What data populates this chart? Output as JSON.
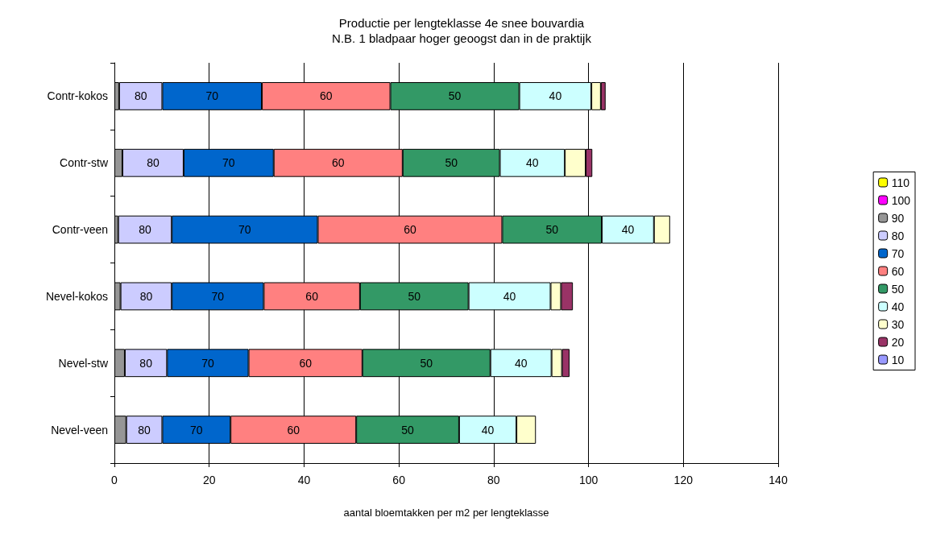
{
  "chart_data": {
    "type": "bar",
    "orientation": "horizontal",
    "stacked": true,
    "title": "Productie per lengteklasse 4e snee bouvardia",
    "subtitle": "N.B. 1 bladpaar hoger geoogst dan in de praktijk",
    "xlabel": "aantal bloemtakken per m2 per lengteklasse",
    "categories": [
      "Contr-kokos",
      "Contr-stw",
      "Contr-veen",
      "Nevel-kokos",
      "Nevel-stw",
      "Nevel-veen"
    ],
    "xlim": [
      0,
      140
    ],
    "xticks": [
      0,
      20,
      40,
      60,
      80,
      100,
      120,
      140
    ],
    "grid": "x",
    "legend": "right",
    "series": [
      {
        "name": "110",
        "color": "#ffff00",
        "values": [
          null,
          null,
          null,
          null,
          null,
          null
        ]
      },
      {
        "name": "100",
        "color": "#ff00ff",
        "values": [
          null,
          null,
          null,
          null,
          null,
          null
        ]
      },
      {
        "name": "90",
        "color": "#969696",
        "values": [
          1.0,
          1.7,
          0.8,
          1.3,
          2.2,
          2.5
        ]
      },
      {
        "name": "80",
        "color": "#ccccff",
        "values": [
          9.1,
          12.9,
          11.3,
          10.8,
          8.9,
          7.6
        ]
      },
      {
        "name": "70",
        "color": "#0066cc",
        "values": [
          21.0,
          19.0,
          30.8,
          19.4,
          17.2,
          14.4
        ]
      },
      {
        "name": "60",
        "color": "#ff8080",
        "values": [
          27.1,
          27.2,
          38.9,
          20.3,
          24.0,
          26.5
        ]
      },
      {
        "name": "50",
        "color": "#339966",
        "values": [
          27.2,
          20.5,
          21.0,
          22.9,
          27.0,
          21.7
        ]
      },
      {
        "name": "40",
        "color": "#ccffff",
        "values": [
          15.2,
          13.7,
          11.0,
          17.3,
          12.9,
          12.1
        ]
      },
      {
        "name": "30",
        "color": "#ffffcc",
        "values": [
          2.0,
          4.4,
          3.4,
          2.2,
          2.2,
          4.1
        ]
      },
      {
        "name": "20",
        "color": "#993366",
        "values": [
          1.0,
          1.4,
          null,
          2.5,
          1.6,
          null
        ]
      },
      {
        "name": "10",
        "color": "#9999ff",
        "values": [
          null,
          null,
          null,
          null,
          null,
          null
        ]
      }
    ]
  }
}
